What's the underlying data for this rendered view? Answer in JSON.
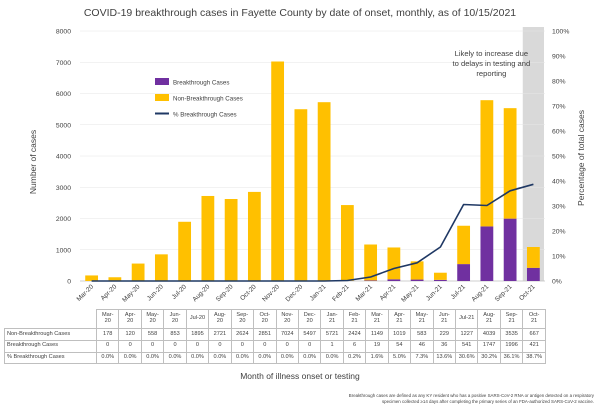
{
  "chart_data": {
    "type": "bar",
    "title": "COVID-19 breakthrough cases in Fayette County by date of onset, monthly, as of 10/15/2021",
    "xlabel": "Month of illness onset or testing",
    "ylabel": "Number of cases",
    "y2label": "Percentage of total cases",
    "categories": [
      "Mar-20",
      "Apr-20",
      "May-20",
      "Jun-20",
      "Jul-20",
      "Aug-20",
      "Sep-20",
      "Oct-20",
      "Nov-20",
      "Dec-20",
      "Jan-21",
      "Feb-21",
      "Mar-21",
      "Apr-21",
      "May-21",
      "Jun-21",
      "Jul-21",
      "Aug-21",
      "Sep-21",
      "Oct-21"
    ],
    "table_categories": [
      "Mar-\n20",
      "Apr-\n20",
      "May-\n20",
      "Jun-\n20",
      "Jul-20",
      "Aug-\n20",
      "Sep-\n20",
      "Oct-\n20",
      "Nov-\n20",
      "Dec-\n20",
      "Jan-\n21",
      "Feb-\n21",
      "Mar-\n21",
      "Apr-\n21",
      "May-\n21",
      "Jun-\n21",
      "Jul-21",
      "Aug-\n21",
      "Sep-\n21",
      "Oct-\n21"
    ],
    "series": [
      {
        "name": "Breakthrough Cases",
        "type": "bar",
        "color": "#7030a0",
        "values": [
          0,
          0,
          0,
          0,
          0,
          0,
          0,
          0,
          0,
          0,
          1,
          6,
          19,
          54,
          46,
          36,
          541,
          1747,
          1996,
          421
        ]
      },
      {
        "name": "Non-Breakthrough Cases",
        "type": "bar",
        "color": "#ffc000",
        "values": [
          178,
          120,
          558,
          853,
          1895,
          2721,
          2624,
          2851,
          7024,
          5497,
          5721,
          2424,
          1149,
          1019,
          583,
          229,
          1227,
          4039,
          3535,
          667
        ]
      },
      {
        "name": "% Breakthrough Cases",
        "type": "line",
        "axis": "right",
        "color": "#1f3864",
        "values": [
          0,
          0,
          0,
          0,
          0,
          0,
          0,
          0,
          0,
          0,
          0,
          0.2,
          1.6,
          5.0,
          7.3,
          13.6,
          30.6,
          30.2,
          36.1,
          38.7
        ],
        "table_values": [
          "0.0%",
          "0.0%",
          "0.0%",
          "0.0%",
          "0.0%",
          "0.0%",
          "0.0%",
          "0.0%",
          "0.0%",
          "0.0%",
          "0.0%",
          "0.2%",
          "1.6%",
          "5.0%",
          "7.3%",
          "13.6%",
          "30.6%",
          "30.2%",
          "36.1%",
          "38.7%"
        ]
      }
    ],
    "ylim": [
      0,
      8000
    ],
    "yticks": [
      "0",
      "1000",
      "2000",
      "3000",
      "4000",
      "5000",
      "6000",
      "7000",
      "8000"
    ],
    "y2lim": [
      0,
      100
    ],
    "y2ticks": [
      "0%",
      "10%",
      "20%",
      "30%",
      "40%",
      "50%",
      "60%",
      "70%",
      "80%",
      "90%",
      "100%"
    ],
    "legend_position": "upper-left",
    "annotation": "Likely to increase due to delays in testing and reporting",
    "annotation_lines": [
      "Likely to increase due",
      "to delays in testing and",
      "reporting"
    ],
    "highlighted_category": "Oct-21",
    "highlight_color": "#d9d9d9",
    "footnote_lines": [
      "Breakthrough cases are defined as any KY resident who has a positive SARS-CoV-2 RNA or antigen detected on a respiratory",
      "specimen collected ≥14 days after completing the primary series of an FDA-authorized SARS-CoV-2 vaccine."
    ]
  }
}
